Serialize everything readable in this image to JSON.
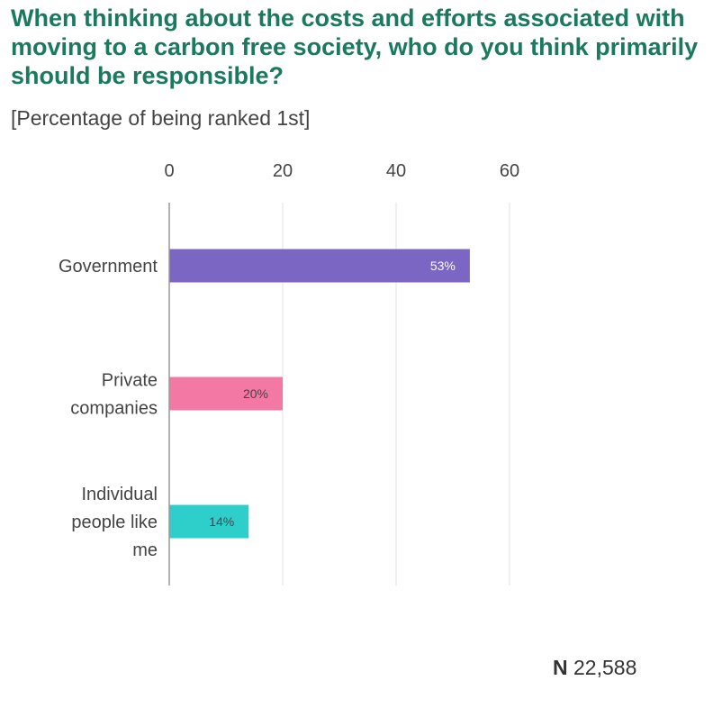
{
  "chart_data": {
    "type": "bar",
    "orientation": "horizontal",
    "title": "When thinking about the costs and efforts associated with moving to a carbon free society, who do you think primarily should be responsible?",
    "subtitle": "[Percentage of being ranked 1st]",
    "categories": [
      [
        "Government"
      ],
      [
        "Private",
        "companies"
      ],
      [
        "Individual",
        "people like",
        "me"
      ]
    ],
    "values": [
      53,
      20,
      14
    ],
    "data_labels": [
      "53%",
      "20%",
      "14%"
    ],
    "colors": [
      "#7b66c4",
      "#f478a4",
      "#2ecfcb"
    ],
    "label_colors": [
      "#ffffff",
      "#444444",
      "#444444"
    ],
    "xlim": [
      0,
      60
    ],
    "xticks": [
      0,
      20,
      40,
      60
    ],
    "grid": true,
    "legend": "none"
  },
  "footnote": {
    "prefix": "N",
    "value": "22,588"
  }
}
